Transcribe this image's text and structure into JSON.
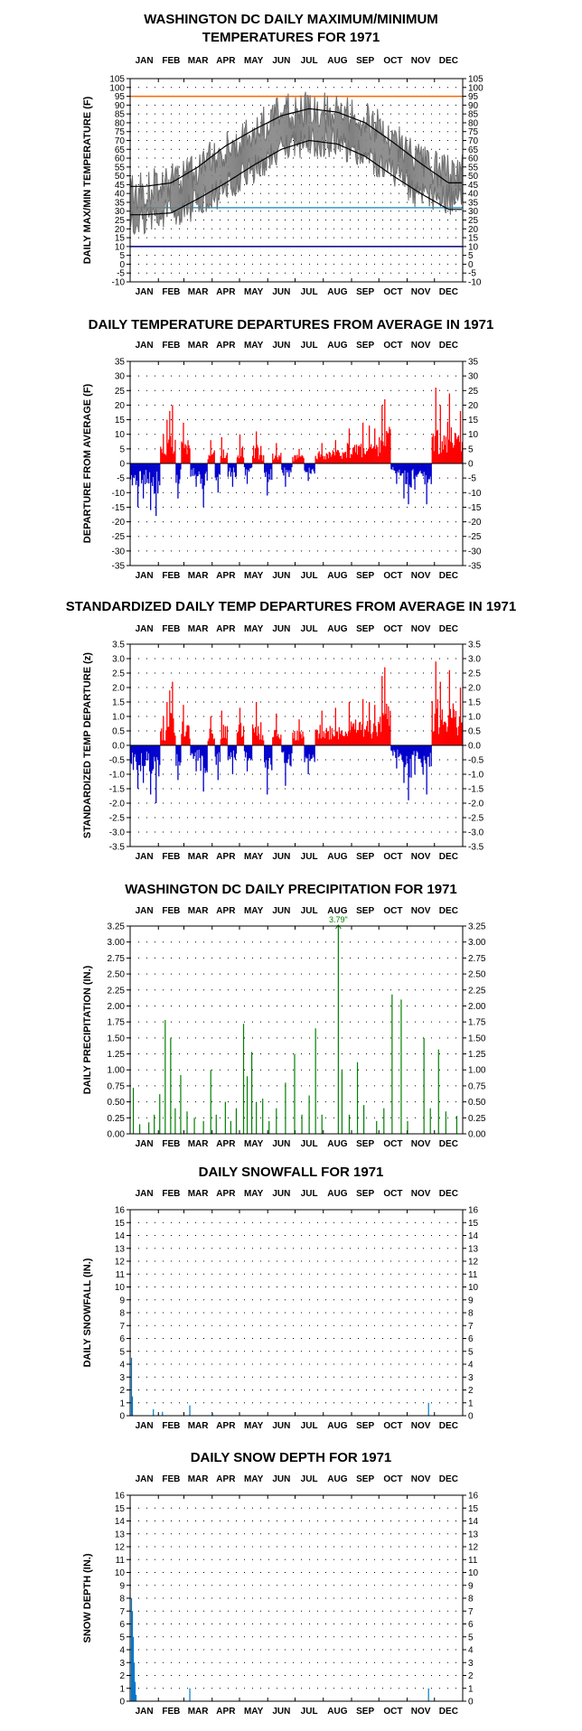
{
  "chart_data": [
    {
      "type": "line",
      "title": [
        "WASHINGTON DC DAILY MAXIMUM/MINIMUM",
        "TEMPERATURES FOR 1971"
      ],
      "ylabel": "DAILY MAX/MIN TEMPERATURE (F)",
      "months": [
        "JAN",
        "FEB",
        "MAR",
        "APR",
        "MAY",
        "JUN",
        "JUL",
        "AUG",
        "SEP",
        "OCT",
        "NOV",
        "DEC"
      ],
      "ylim": [
        -10,
        105
      ],
      "ytick_step": 5,
      "grid": "dotted",
      "series": [
        {
          "role": "daily_max",
          "color": "#808080",
          "monthly_values": [
            42,
            46,
            55,
            66,
            74,
            86,
            88,
            85,
            82,
            70,
            57,
            51
          ]
        },
        {
          "role": "daily_min",
          "color": "#808080",
          "monthly_values": [
            25,
            29,
            34,
            43,
            54,
            66,
            70,
            69,
            62,
            52,
            38,
            36
          ]
        },
        {
          "role": "normal_max",
          "color": "#000000",
          "monthly_values": [
            44,
            46,
            55,
            67,
            76,
            84,
            88,
            86,
            80,
            69,
            57,
            46
          ]
        },
        {
          "role": "normal_min",
          "color": "#000000",
          "monthly_values": [
            28,
            29,
            37,
            46,
            56,
            65,
            70,
            68,
            61,
            50,
            40,
            31
          ]
        }
      ],
      "reference_lines": [
        {
          "value": 95,
          "color": "#ff6600"
        },
        {
          "value": 32,
          "color": "#3399cc"
        },
        {
          "value": 10,
          "color": "#000080"
        }
      ]
    },
    {
      "type": "bar",
      "title": "DAILY TEMPERATURE DEPARTURES FROM AVERAGE IN 1971",
      "ylabel": "DEPARTURE FROM AVERAGE (F)",
      "ylim": [
        -35,
        35
      ],
      "ytick_step": 5,
      "positive_color": "#ff0000",
      "negative_color": "#0000cc",
      "spikes": [
        {
          "day": 8,
          "value": -15
        },
        {
          "day": 14,
          "value": -12
        },
        {
          "day": 22,
          "value": -16
        },
        {
          "day": 28,
          "value": -18
        },
        {
          "day": 36,
          "value": 10
        },
        {
          "day": 40,
          "value": 15
        },
        {
          "day": 43,
          "value": 18
        },
        {
          "day": 46,
          "value": 20
        },
        {
          "day": 52,
          "value": -12
        },
        {
          "day": 58,
          "value": 14
        },
        {
          "day": 72,
          "value": -8
        },
        {
          "day": 80,
          "value": -15
        },
        {
          "day": 88,
          "value": 8
        },
        {
          "day": 96,
          "value": -10
        },
        {
          "day": 100,
          "value": 9
        },
        {
          "day": 112,
          "value": -8
        },
        {
          "day": 120,
          "value": 10
        },
        {
          "day": 128,
          "value": -7
        },
        {
          "day": 138,
          "value": 11
        },
        {
          "day": 143,
          "value": 6
        },
        {
          "day": 150,
          "value": -11
        },
        {
          "day": 160,
          "value": 7
        },
        {
          "day": 170,
          "value": -8
        },
        {
          "day": 185,
          "value": 5
        },
        {
          "day": 195,
          "value": -6
        },
        {
          "day": 210,
          "value": 7
        },
        {
          "day": 225,
          "value": 8
        },
        {
          "day": 240,
          "value": 12
        },
        {
          "day": 255,
          "value": 14
        },
        {
          "day": 262,
          "value": 13
        },
        {
          "day": 268,
          "value": 12
        },
        {
          "day": 276,
          "value": 20
        },
        {
          "day": 279,
          "value": 22
        },
        {
          "day": 292,
          "value": -7
        },
        {
          "day": 300,
          "value": -12
        },
        {
          "day": 305,
          "value": -14
        },
        {
          "day": 312,
          "value": -9
        },
        {
          "day": 325,
          "value": -14
        },
        {
          "day": 335,
          "value": 26
        },
        {
          "day": 340,
          "value": 20
        },
        {
          "day": 350,
          "value": 24
        },
        {
          "day": 362,
          "value": 18
        }
      ]
    },
    {
      "type": "bar",
      "title": "STANDARDIZED DAILY TEMP DEPARTURES FROM AVERAGE IN 1971",
      "ylabel": "STANDARDIZED TEMP DEPARTURE (z)",
      "ylim": [
        -3.5,
        3.5
      ],
      "ytick_step": 0.5,
      "positive_color": "#ff0000",
      "negative_color": "#0000cc",
      "spikes": [
        {
          "day": 8,
          "value": -1.5
        },
        {
          "day": 14,
          "value": -1.3
        },
        {
          "day": 22,
          "value": -1.7
        },
        {
          "day": 28,
          "value": -2.0
        },
        {
          "day": 36,
          "value": 1.0
        },
        {
          "day": 40,
          "value": 1.5
        },
        {
          "day": 43,
          "value": 1.9
        },
        {
          "day": 46,
          "value": 2.2
        },
        {
          "day": 52,
          "value": -1.2
        },
        {
          "day": 58,
          "value": 1.4
        },
        {
          "day": 72,
          "value": -0.9
        },
        {
          "day": 80,
          "value": -1.6
        },
        {
          "day": 88,
          "value": 1.0
        },
        {
          "day": 96,
          "value": -1.2
        },
        {
          "day": 100,
          "value": 1.2
        },
        {
          "day": 112,
          "value": -1.0
        },
        {
          "day": 120,
          "value": 1.3
        },
        {
          "day": 128,
          "value": -0.9
        },
        {
          "day": 138,
          "value": 1.5
        },
        {
          "day": 143,
          "value": 0.8
        },
        {
          "day": 150,
          "value": -1.7
        },
        {
          "day": 160,
          "value": 1.1
        },
        {
          "day": 170,
          "value": -1.4
        },
        {
          "day": 185,
          "value": 0.9
        },
        {
          "day": 195,
          "value": -1.0
        },
        {
          "day": 210,
          "value": 1.2
        },
        {
          "day": 225,
          "value": 1.3
        },
        {
          "day": 240,
          "value": 1.5
        },
        {
          "day": 255,
          "value": 1.6
        },
        {
          "day": 262,
          "value": 1.5
        },
        {
          "day": 268,
          "value": 1.4
        },
        {
          "day": 276,
          "value": 2.4
        },
        {
          "day": 279,
          "value": 2.7
        },
        {
          "day": 292,
          "value": -0.8
        },
        {
          "day": 300,
          "value": -1.3
        },
        {
          "day": 305,
          "value": -1.9
        },
        {
          "day": 312,
          "value": -1.0
        },
        {
          "day": 325,
          "value": -1.7
        },
        {
          "day": 335,
          "value": 2.9
        },
        {
          "day": 340,
          "value": 2.2
        },
        {
          "day": 350,
          "value": 2.6
        },
        {
          "day": 362,
          "value": 2.0
        }
      ]
    },
    {
      "type": "bar",
      "title": "WASHINGTON DC DAILY PRECIPITATION FOR 1971",
      "ylabel": "DAILY PRECIPITATION (IN.)",
      "ylim": [
        0,
        3.25
      ],
      "ytick_step": 0.25,
      "color": "#008000",
      "annotation": "3.79\"",
      "annotation_day": 228,
      "spikes": [
        {
          "day": 3,
          "value": 0.72
        },
        {
          "day": 10,
          "value": 0.15
        },
        {
          "day": 20,
          "value": 0.18
        },
        {
          "day": 26,
          "value": 0.3
        },
        {
          "day": 32,
          "value": 0.62
        },
        {
          "day": 38,
          "value": 1.78
        },
        {
          "day": 44,
          "value": 1.5
        },
        {
          "day": 49,
          "value": 0.4
        },
        {
          "day": 55,
          "value": 0.92
        },
        {
          "day": 62,
          "value": 0.35
        },
        {
          "day": 70,
          "value": 0.25
        },
        {
          "day": 80,
          "value": 0.2
        },
        {
          "day": 88,
          "value": 1.0
        },
        {
          "day": 94,
          "value": 0.3
        },
        {
          "day": 104,
          "value": 0.5
        },
        {
          "day": 110,
          "value": 0.2
        },
        {
          "day": 116,
          "value": 0.4
        },
        {
          "day": 124,
          "value": 1.72
        },
        {
          "day": 128,
          "value": 0.9
        },
        {
          "day": 133,
          "value": 1.28
        },
        {
          "day": 138,
          "value": 0.5
        },
        {
          "day": 145,
          "value": 0.55
        },
        {
          "day": 152,
          "value": 0.2
        },
        {
          "day": 160,
          "value": 0.4
        },
        {
          "day": 170,
          "value": 0.8
        },
        {
          "day": 180,
          "value": 1.25
        },
        {
          "day": 188,
          "value": 0.3
        },
        {
          "day": 196,
          "value": 0.6
        },
        {
          "day": 203,
          "value": 1.65
        },
        {
          "day": 210,
          "value": 0.3
        },
        {
          "day": 228,
          "value": 3.25
        },
        {
          "day": 232,
          "value": 1.0
        },
        {
          "day": 240,
          "value": 0.3
        },
        {
          "day": 249,
          "value": 1.12
        },
        {
          "day": 256,
          "value": 0.45
        },
        {
          "day": 270,
          "value": 0.2
        },
        {
          "day": 278,
          "value": 0.4
        },
        {
          "day": 287,
          "value": 2.18
        },
        {
          "day": 297,
          "value": 2.1
        },
        {
          "day": 304,
          "value": 0.2
        },
        {
          "day": 322,
          "value": 1.5
        },
        {
          "day": 329,
          "value": 0.4
        },
        {
          "day": 338,
          "value": 1.32
        },
        {
          "day": 346,
          "value": 0.35
        },
        {
          "day": 358,
          "value": 0.28
        }
      ]
    },
    {
      "type": "bar",
      "title": "DAILY SNOWFALL FOR 1971",
      "ylabel": "DAILY SNOWFALL (IN.)",
      "ylim": [
        0,
        16
      ],
      "ytick_step": 1,
      "color": "#0077cc",
      "spikes": [
        {
          "day": 1,
          "value": 4.5
        },
        {
          "day": 2,
          "value": 1.5
        },
        {
          "day": 25,
          "value": 0.5
        },
        {
          "day": 35,
          "value": 0.3
        },
        {
          "day": 65,
          "value": 0.8
        },
        {
          "day": 90,
          "value": 0.2
        },
        {
          "day": 327,
          "value": 1.0
        }
      ]
    },
    {
      "type": "bar",
      "title": "DAILY SNOW DEPTH FOR 1971",
      "ylabel": "SNOW DEPTH (IN.)",
      "ylim": [
        0,
        16
      ],
      "ytick_step": 1,
      "color": "#0077cc",
      "spikes": [
        {
          "day": 1,
          "value": 8
        },
        {
          "day": 2,
          "value": 7
        },
        {
          "day": 3,
          "value": 5
        },
        {
          "day": 4,
          "value": 3
        },
        {
          "day": 5,
          "value": 1.5
        },
        {
          "day": 6,
          "value": 0.5
        },
        {
          "day": 65,
          "value": 1
        },
        {
          "day": 327,
          "value": 1
        }
      ]
    }
  ]
}
